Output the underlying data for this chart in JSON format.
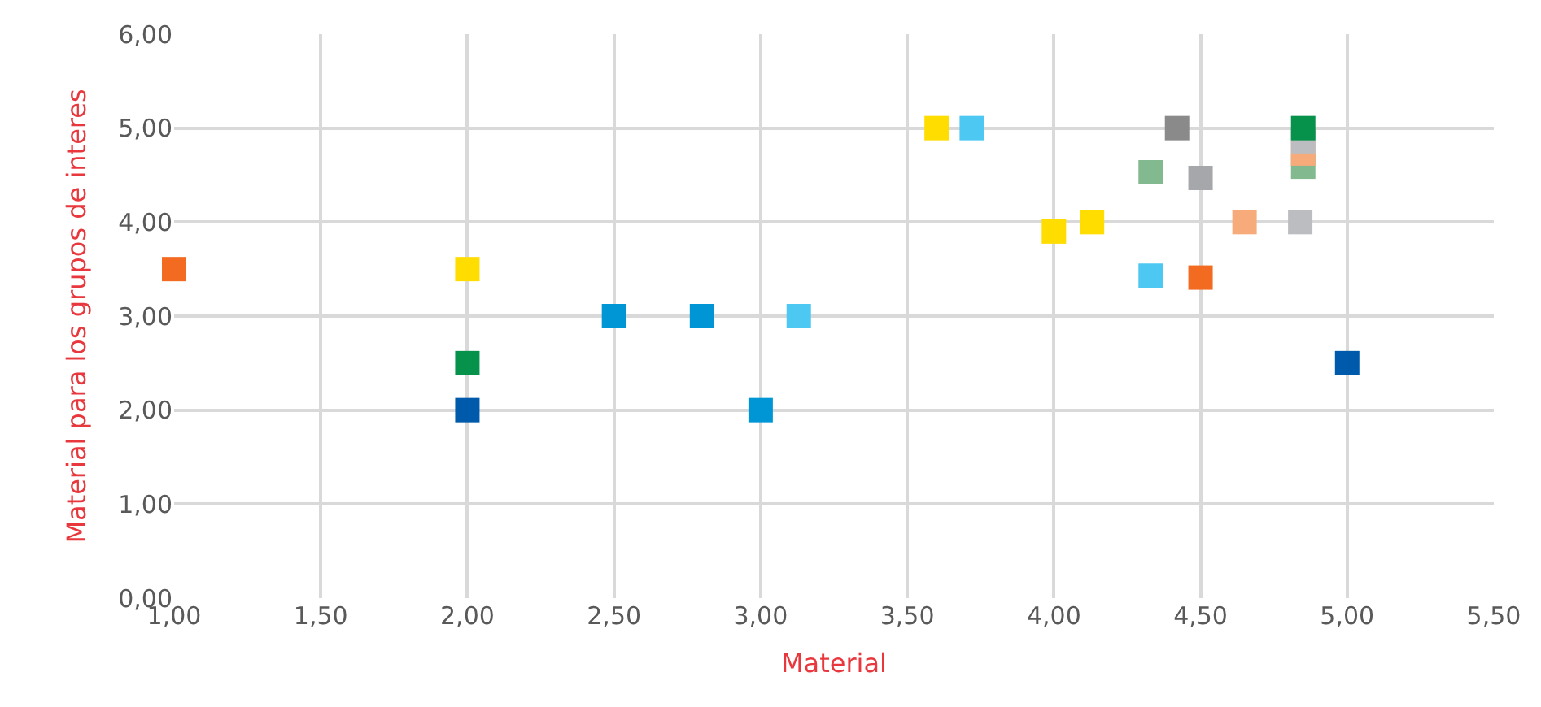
{
  "chart_data": {
    "type": "scatter",
    "xlabel": "Material",
    "ylabel": "Material para los grupos de interes",
    "x": [
      1.0,
      2.0,
      2.0,
      2.0,
      2.5,
      2.8,
      3.13,
      3.0,
      3.6,
      3.72,
      4.0,
      4.13,
      4.33,
      4.33,
      4.42,
      4.5,
      4.5,
      4.65,
      4.84,
      4.85,
      4.85,
      4.85,
      4.85,
      5.0
    ],
    "values": [
      3.5,
      3.5,
      2.5,
      2.0,
      3.0,
      3.0,
      3.0,
      2.0,
      5.0,
      5.0,
      3.9,
      4.0,
      3.43,
      4.53,
      5.0,
      4.47,
      3.41,
      4.0,
      4.0,
      4.59,
      4.73,
      4.86,
      5.0,
      2.5
    ],
    "colors": [
      "#f26b21",
      "#ffdd00",
      "#07924b",
      "#005aab",
      "#0096d6",
      "#0096d6",
      "#4cc8f2",
      "#0096d6",
      "#ffdd00",
      "#4cc8f2",
      "#ffdd00",
      "#ffdd00",
      "#4cc8f2",
      "#82b98f",
      "#8a8a8a",
      "#a6a7aa",
      "#f26b21",
      "#f7ab7a",
      "#bcbdc0",
      "#82b98f",
      "#f7ab7a",
      "#bcbdc0",
      "#07924b",
      "#005aab"
    ],
    "xlim": [
      1.0,
      5.5
    ],
    "xticks": [
      {
        "value": 1,
        "label": "1,00"
      },
      {
        "value": 1.5,
        "label": "1,50"
      },
      {
        "value": 2,
        "label": "2,00"
      },
      {
        "value": 2.5,
        "label": "2,50"
      },
      {
        "value": 3,
        "label": "3,00"
      },
      {
        "value": 3.5,
        "label": "3,50"
      },
      {
        "value": 4,
        "label": "4,00"
      },
      {
        "value": 4.5,
        "label": "4,50"
      },
      {
        "value": 5,
        "label": "5,00"
      },
      {
        "value": 5.5,
        "label": "5,50"
      }
    ],
    "ylim": [
      0,
      6
    ],
    "yticks": [
      {
        "value": 0,
        "label": "0,00"
      },
      {
        "value": 1,
        "label": "1,00"
      },
      {
        "value": 2,
        "label": "2,00"
      },
      {
        "value": 3,
        "label": "3,00"
      },
      {
        "value": 4,
        "label": "4,00"
      },
      {
        "value": 5,
        "label": "5,00"
      },
      {
        "value": 6,
        "label": "6,00"
      }
    ],
    "grid": true,
    "marker": "square"
  }
}
